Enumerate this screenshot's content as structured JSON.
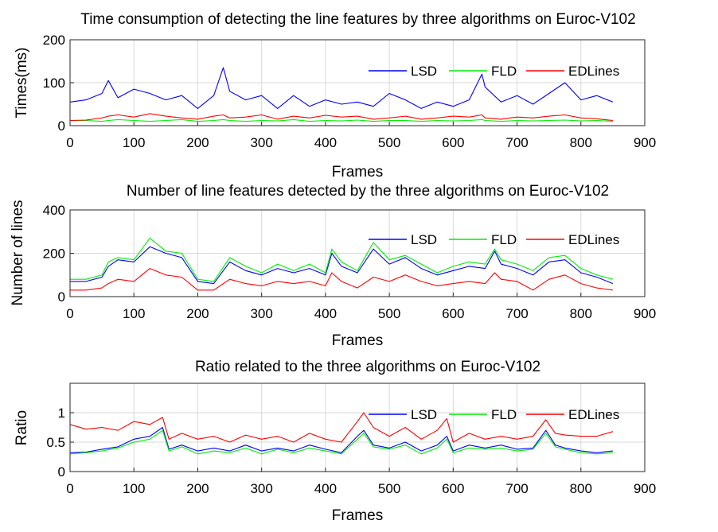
{
  "chart_data": [
    {
      "type": "line",
      "title": "Time consumption of detecting the line features by three algorithms on Euroc-V102",
      "xlabel": "Frames",
      "ylabel": "Times(ms)",
      "xlim": [
        0,
        900
      ],
      "ylim": [
        0,
        200
      ],
      "xticks": [
        "0",
        "100",
        "200",
        "300",
        "400",
        "500",
        "600",
        "700",
        "800",
        "900"
      ],
      "yticks": [
        "0",
        "100",
        "200"
      ],
      "grid": true,
      "legend": "top-right",
      "x": [
        0,
        25,
        50,
        60,
        75,
        100,
        125,
        150,
        175,
        200,
        225,
        240,
        250,
        275,
        300,
        325,
        350,
        375,
        400,
        425,
        450,
        475,
        500,
        525,
        550,
        575,
        600,
        625,
        645,
        650,
        675,
        700,
        725,
        750,
        775,
        800,
        825,
        850
      ],
      "series": [
        {
          "name": "LSD",
          "color": "#0000ff",
          "values": [
            55,
            60,
            75,
            105,
            65,
            85,
            75,
            60,
            70,
            40,
            70,
            135,
            80,
            60,
            70,
            40,
            70,
            45,
            60,
            50,
            55,
            45,
            75,
            60,
            40,
            55,
            45,
            60,
            120,
            90,
            55,
            70,
            50,
            75,
            100,
            60,
            70,
            55
          ]
        },
        {
          "name": "FLD",
          "color": "#00ee00",
          "values": [
            12,
            12,
            10,
            12,
            14,
            12,
            10,
            12,
            14,
            10,
            12,
            14,
            12,
            10,
            12,
            11,
            14,
            10,
            12,
            11,
            13,
            10,
            12,
            12,
            10,
            12,
            11,
            12,
            14,
            12,
            10,
            12,
            11,
            12,
            13,
            11,
            12,
            10
          ]
        },
        {
          "name": "EDLines",
          "color": "#ff0000",
          "values": [
            12,
            13,
            18,
            22,
            25,
            20,
            28,
            22,
            18,
            15,
            22,
            25,
            18,
            20,
            25,
            15,
            22,
            18,
            24,
            20,
            22,
            15,
            18,
            22,
            15,
            18,
            22,
            20,
            25,
            18,
            15,
            20,
            18,
            22,
            25,
            18,
            16,
            12
          ]
        }
      ]
    },
    {
      "type": "line",
      "title": "Number of line features detected by the three algorithms on Euroc-V102",
      "xlabel": "Frames",
      "ylabel": "Number of lines",
      "xlim": [
        0,
        900
      ],
      "ylim": [
        0,
        400
      ],
      "xticks": [
        "0",
        "100",
        "200",
        "300",
        "400",
        "500",
        "600",
        "700",
        "800",
        "900"
      ],
      "yticks": [
        "0",
        "200",
        "400"
      ],
      "grid": true,
      "legend": "top-right",
      "x": [
        0,
        25,
        50,
        60,
        75,
        100,
        125,
        150,
        175,
        200,
        225,
        250,
        275,
        300,
        325,
        350,
        375,
        400,
        410,
        425,
        450,
        475,
        500,
        525,
        550,
        575,
        600,
        625,
        650,
        665,
        675,
        700,
        725,
        750,
        775,
        800,
        825,
        850
      ],
      "series": [
        {
          "name": "LSD",
          "color": "#0000ff",
          "values": [
            70,
            70,
            90,
            140,
            170,
            160,
            230,
            200,
            180,
            70,
            60,
            160,
            120,
            100,
            130,
            110,
            130,
            100,
            200,
            140,
            110,
            220,
            150,
            180,
            130,
            100,
            120,
            140,
            130,
            210,
            150,
            130,
            100,
            160,
            170,
            110,
            90,
            60
          ]
        },
        {
          "name": "FLD",
          "color": "#00ee00",
          "values": [
            80,
            80,
            100,
            160,
            180,
            170,
            270,
            210,
            200,
            80,
            70,
            180,
            140,
            110,
            150,
            120,
            150,
            110,
            220,
            160,
            120,
            250,
            170,
            190,
            150,
            110,
            140,
            160,
            150,
            220,
            170,
            150,
            120,
            180,
            190,
            130,
            100,
            80
          ]
        },
        {
          "name": "EDLines",
          "color": "#ff0000",
          "values": [
            30,
            30,
            40,
            60,
            80,
            70,
            130,
            100,
            90,
            30,
            30,
            80,
            60,
            50,
            70,
            60,
            70,
            50,
            110,
            70,
            40,
            90,
            70,
            100,
            70,
            50,
            60,
            70,
            60,
            110,
            80,
            70,
            30,
            80,
            100,
            60,
            40,
            30
          ]
        }
      ]
    },
    {
      "type": "line",
      "title": "Ratio related to the three algorithms on Euroc-V102",
      "xlabel": "Frames",
      "ylabel": "Ratio",
      "xlim": [
        0,
        900
      ],
      "ylim": [
        0,
        1.5
      ],
      "xticks": [
        "0",
        "100",
        "200",
        "300",
        "400",
        "500",
        "600",
        "700",
        "800",
        "900"
      ],
      "yticks": [
        "0",
        "0.5",
        "1"
      ],
      "grid": true,
      "legend": "top-right",
      "x": [
        0,
        25,
        50,
        75,
        100,
        125,
        145,
        155,
        175,
        200,
        225,
        250,
        275,
        300,
        325,
        350,
        375,
        400,
        425,
        450,
        460,
        475,
        500,
        525,
        550,
        575,
        590,
        600,
        625,
        650,
        675,
        700,
        725,
        745,
        760,
        775,
        800,
        825,
        850
      ],
      "series": [
        {
          "name": "LSD",
          "color": "#0000ff",
          "values": [
            0.32,
            0.33,
            0.38,
            0.42,
            0.55,
            0.6,
            0.75,
            0.38,
            0.45,
            0.35,
            0.4,
            0.35,
            0.45,
            0.35,
            0.4,
            0.35,
            0.45,
            0.38,
            0.32,
            0.6,
            0.7,
            0.45,
            0.4,
            0.5,
            0.35,
            0.45,
            0.6,
            0.35,
            0.45,
            0.4,
            0.45,
            0.38,
            0.4,
            0.7,
            0.45,
            0.4,
            0.35,
            0.32,
            0.35
          ]
        },
        {
          "name": "FLD",
          "color": "#00ee00",
          "values": [
            0.3,
            0.32,
            0.35,
            0.4,
            0.5,
            0.55,
            0.7,
            0.35,
            0.42,
            0.3,
            0.35,
            0.32,
            0.4,
            0.3,
            0.38,
            0.32,
            0.4,
            0.35,
            0.3,
            0.55,
            0.65,
            0.42,
            0.38,
            0.45,
            0.3,
            0.4,
            0.55,
            0.32,
            0.4,
            0.38,
            0.4,
            0.35,
            0.38,
            0.65,
            0.42,
            0.38,
            0.32,
            0.3,
            0.32
          ]
        },
        {
          "name": "EDLines",
          "color": "#ff0000",
          "values": [
            0.8,
            0.72,
            0.75,
            0.7,
            0.85,
            0.8,
            0.92,
            0.55,
            0.65,
            0.55,
            0.6,
            0.5,
            0.62,
            0.55,
            0.6,
            0.5,
            0.65,
            0.55,
            0.5,
            0.85,
            1.0,
            0.75,
            0.6,
            0.75,
            0.55,
            0.7,
            0.9,
            0.5,
            0.65,
            0.55,
            0.6,
            0.55,
            0.6,
            0.88,
            0.65,
            0.62,
            0.6,
            0.6,
            0.68
          ]
        }
      ]
    }
  ]
}
